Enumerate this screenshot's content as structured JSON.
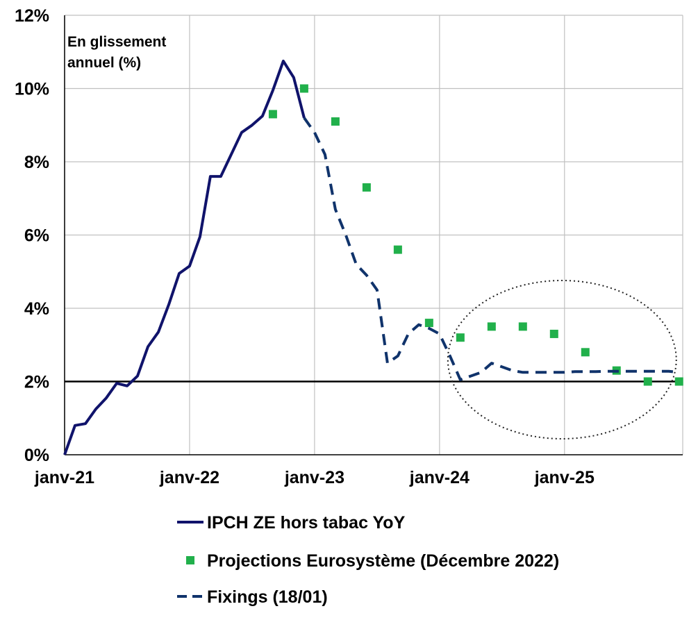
{
  "chart_data": {
    "type": "line",
    "ylabel_lines": [
      "En glissement",
      "annuel (%)"
    ],
    "ylim": [
      0,
      12
    ],
    "yticks": [
      0,
      2,
      4,
      6,
      8,
      10,
      12
    ],
    "ytick_labels": [
      "0%",
      "2%",
      "4%",
      "6%",
      "8%",
      "10%",
      "12%"
    ],
    "xlim": [
      "2021-01",
      "2025-12"
    ],
    "xticks": [
      "2021-01",
      "2022-01",
      "2023-01",
      "2024-01",
      "2025-01"
    ],
    "xtick_labels": [
      "janv-21",
      "janv-22",
      "janv-23",
      "janv-24",
      "janv-25"
    ],
    "grid": true,
    "reference_line": 2,
    "legend_position": "bottom",
    "colors": {
      "actual": "#10136b",
      "projection": "#21b04b",
      "fixings": "#10336b",
      "reference": "#000000",
      "grid": "#c0c0c0"
    },
    "series": [
      {
        "name": "IPCH ZE hors tabac YoY",
        "style": "solid-line",
        "points": [
          [
            "2021-01",
            0.0
          ],
          [
            "2021-02",
            0.8
          ],
          [
            "2021-03",
            0.85
          ],
          [
            "2021-04",
            1.25
          ],
          [
            "2021-05",
            1.55
          ],
          [
            "2021-06",
            1.95
          ],
          [
            "2021-07",
            1.88
          ],
          [
            "2021-08",
            2.15
          ],
          [
            "2021-09",
            2.95
          ],
          [
            "2021-10",
            3.35
          ],
          [
            "2021-11",
            4.1
          ],
          [
            "2021-12",
            4.95
          ],
          [
            "2022-01",
            5.15
          ],
          [
            "2022-02",
            5.95
          ],
          [
            "2022-03",
            7.6
          ],
          [
            "2022-04",
            7.6
          ],
          [
            "2022-05",
            8.2
          ],
          [
            "2022-06",
            8.8
          ],
          [
            "2022-07",
            9.0
          ],
          [
            "2022-08",
            9.25
          ],
          [
            "2022-09",
            9.95
          ],
          [
            "2022-10",
            10.75
          ],
          [
            "2022-11",
            10.3
          ],
          [
            "2022-12",
            9.2
          ]
        ]
      },
      {
        "name": "Projections Eurosystème (Décembre 2022)",
        "style": "markers",
        "points": [
          [
            "2022-09",
            9.3
          ],
          [
            "2022-12",
            10.0
          ],
          [
            "2023-03",
            9.1
          ],
          [
            "2023-06",
            7.3
          ],
          [
            "2023-09",
            5.6
          ],
          [
            "2023-12",
            3.6
          ],
          [
            "2024-03",
            3.2
          ],
          [
            "2024-06",
            3.5
          ],
          [
            "2024-09",
            3.5
          ],
          [
            "2024-12",
            3.3
          ],
          [
            "2025-03",
            2.8
          ],
          [
            "2025-06",
            2.3
          ],
          [
            "2025-09",
            2.0
          ],
          [
            "2025-12",
            2.0
          ]
        ]
      },
      {
        "name": "Fixings (18/01)",
        "style": "dashed-line",
        "points": [
          [
            "2022-12",
            9.2
          ],
          [
            "2023-01",
            8.8
          ],
          [
            "2023-02",
            8.2
          ],
          [
            "2023-03",
            6.7
          ],
          [
            "2023-04",
            6.0
          ],
          [
            "2023-05",
            5.2
          ],
          [
            "2023-06",
            4.9
          ],
          [
            "2023-07",
            4.5
          ],
          [
            "2023-08",
            2.5
          ],
          [
            "2023-09",
            2.7
          ],
          [
            "2023-10",
            3.3
          ],
          [
            "2023-11",
            3.55
          ],
          [
            "2023-12",
            3.45
          ],
          [
            "2024-01",
            3.3
          ],
          [
            "2024-02",
            2.7
          ],
          [
            "2024-03",
            2.05
          ],
          [
            "2024-04",
            2.15
          ],
          [
            "2024-05",
            2.25
          ],
          [
            "2024-06",
            2.5
          ],
          [
            "2024-07",
            2.4
          ],
          [
            "2024-08",
            2.3
          ],
          [
            "2024-09",
            2.25
          ],
          [
            "2024-10",
            2.25
          ],
          [
            "2024-11",
            2.25
          ],
          [
            "2024-12",
            2.25
          ],
          [
            "2025-01",
            2.25
          ],
          [
            "2025-02",
            2.27
          ],
          [
            "2025-03",
            2.27
          ],
          [
            "2025-04",
            2.27
          ],
          [
            "2025-05",
            2.28
          ],
          [
            "2025-06",
            2.28
          ],
          [
            "2025-07",
            2.28
          ],
          [
            "2025-08",
            2.28
          ],
          [
            "2025-09",
            2.28
          ],
          [
            "2025-10",
            2.28
          ],
          [
            "2025-11",
            2.28
          ],
          [
            "2025-12",
            2.25
          ]
        ]
      }
    ],
    "annotation": {
      "type": "dotted-ellipse",
      "around": [
        "2024-03",
        "2025-12"
      ]
    }
  }
}
